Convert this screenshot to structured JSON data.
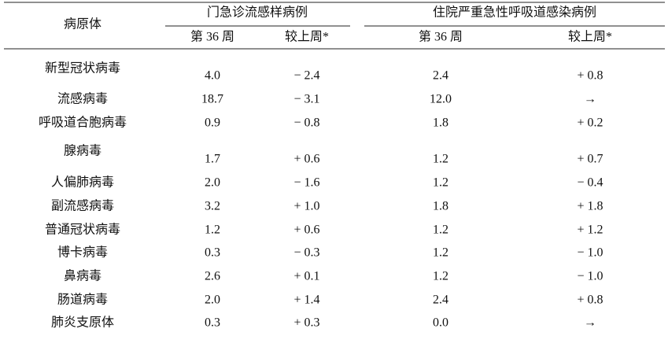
{
  "table": {
    "header": {
      "pathogen": "病原体",
      "groups": [
        "门急诊流感样病例",
        "住院严重急性呼吸道感染病例"
      ],
      "subheaders": [
        "第 36 周",
        "较上周*",
        "第 36 周",
        "较上周*"
      ]
    },
    "rows": [
      [
        "新型冠状病毒",
        "4.0",
        "− 2.4",
        "2.4",
        "+ 0.8"
      ],
      [
        "流感病毒",
        "18.7",
        "− 3.1",
        "12.0",
        "→"
      ],
      [
        "呼吸道合胞病毒",
        "0.9",
        "− 0.8",
        "1.8",
        "+ 0.2"
      ],
      [
        "腺病毒",
        "1.7",
        "+ 0.6",
        "1.2",
        "+ 0.7"
      ],
      [
        "人偏肺病毒",
        "2.0",
        "− 1.6",
        "1.2",
        "− 0.4"
      ],
      [
        "副流感病毒",
        "3.2",
        "+ 1.0",
        "1.8",
        "+ 1.8"
      ],
      [
        "普通冠状病毒",
        "1.2",
        "+ 0.6",
        "1.2",
        "+ 1.2"
      ],
      [
        "博卡病毒",
        "0.3",
        "− 0.3",
        "1.2",
        "− 1.0"
      ],
      [
        "鼻病毒",
        "2.6",
        "+ 0.1",
        "1.2",
        "− 1.0"
      ],
      [
        "肠道病毒",
        "2.0",
        "+ 1.4",
        "2.4",
        "+ 0.8"
      ],
      [
        "肺炎支原体",
        "0.3",
        "+ 0.3",
        "0.0",
        "→"
      ]
    ]
  }
}
